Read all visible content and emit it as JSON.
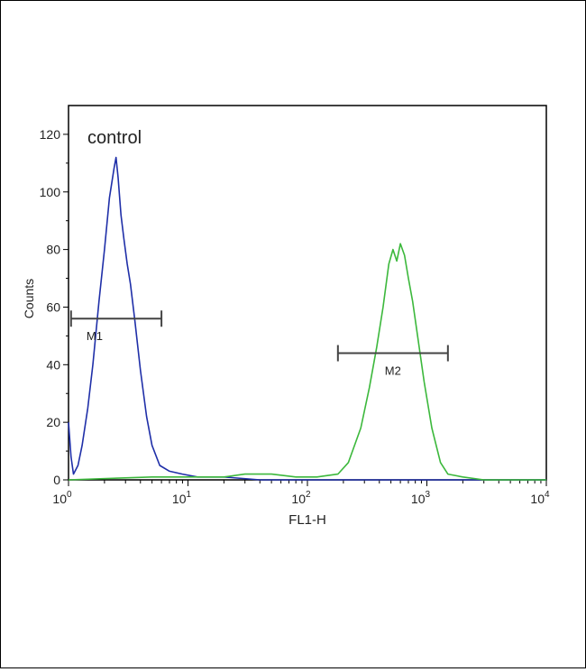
{
  "chart_data": {
    "type": "line",
    "title": "",
    "annotation": "control",
    "xlabel": "FL1-H",
    "ylabel": "Counts",
    "x_scale": "log",
    "xlim": [
      1,
      10000
    ],
    "ylim": [
      0,
      130
    ],
    "x_ticks": [
      {
        "base": "10",
        "exp": "0"
      },
      {
        "base": "10",
        "exp": "1"
      },
      {
        "base": "10",
        "exp": "2"
      },
      {
        "base": "10",
        "exp": "3"
      },
      {
        "base": "10",
        "exp": "4"
      }
    ],
    "y_ticks": [
      "0",
      "20",
      "40",
      "60",
      "80",
      "100",
      "120"
    ],
    "grid": false,
    "series": [
      {
        "color": "#1f2fa8",
        "x": [
          1.0,
          1.05,
          1.1,
          1.2,
          1.3,
          1.45,
          1.6,
          1.8,
          2.0,
          2.2,
          2.4,
          2.5,
          2.6,
          2.75,
          2.9,
          3.1,
          3.3,
          3.6,
          4.0,
          4.5,
          5.0,
          5.8,
          7.0,
          9.0,
          12,
          20,
          40,
          100,
          1000,
          10000
        ],
        "y": [
          20,
          8,
          2,
          5,
          12,
          25,
          40,
          62,
          80,
          98,
          108,
          112,
          105,
          92,
          84,
          75,
          68,
          55,
          38,
          22,
          12,
          5,
          3,
          2,
          1,
          1,
          0,
          0,
          0,
          0
        ]
      },
      {
        "color": "#3cb83c",
        "x": [
          1,
          5,
          10,
          20,
          30,
          40,
          50,
          80,
          120,
          180,
          220,
          280,
          330,
          380,
          430,
          480,
          520,
          560,
          600,
          650,
          700,
          760,
          850,
          950,
          1100,
          1300,
          1500,
          2000,
          3000,
          10000
        ],
        "y": [
          0,
          1,
          1,
          1,
          2,
          2,
          2,
          1,
          1,
          2,
          6,
          18,
          32,
          46,
          60,
          75,
          80,
          76,
          82,
          78,
          70,
          62,
          48,
          34,
          18,
          6,
          2,
          1,
          0,
          0
        ]
      }
    ],
    "markers": [
      {
        "label": "M1",
        "x_start": 1.05,
        "x_end": 6.0,
        "y": 56
      },
      {
        "label": "M2",
        "x_start": 180,
        "x_end": 1500,
        "y": 44
      }
    ]
  }
}
